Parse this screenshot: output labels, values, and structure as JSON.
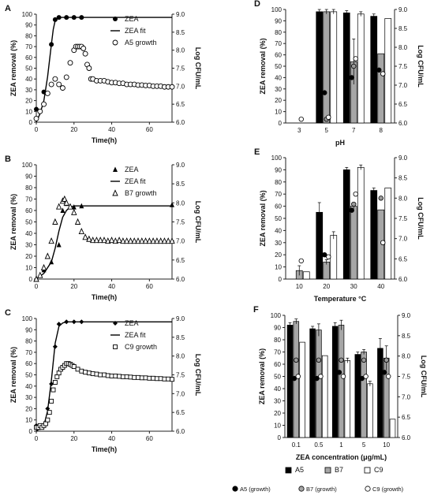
{
  "chart_data": [
    {
      "id": "A",
      "type": "line",
      "panel_label": "A",
      "xlabel": "Time(h)",
      "ylabel": "ZEA removal (%)",
      "y2label": "Log CFU/mL",
      "xlim": [
        0,
        72
      ],
      "ylim": [
        0,
        100
      ],
      "y2lim": [
        6.0,
        9.0
      ],
      "xticks": [
        0,
        20,
        40,
        60
      ],
      "yticks": [
        0,
        10,
        20,
        30,
        40,
        50,
        60,
        70,
        80,
        90,
        100
      ],
      "y2ticks": [
        6.0,
        6.5,
        7.0,
        7.5,
        8.0,
        8.5,
        9.0
      ],
      "legend": [
        {
          "label": "ZEA",
          "marker": "filled-circle"
        },
        {
          "label": "ZEA fit",
          "marker": "line"
        },
        {
          "label": "A5 growth",
          "marker": "open-circle"
        }
      ],
      "series": [
        {
          "name": "ZEA",
          "axis": "left",
          "style": "filled-circle",
          "x": [
            0,
            4,
            8,
            10,
            12,
            16,
            20,
            24
          ],
          "y": [
            12,
            28,
            72,
            95,
            97,
            97,
            97,
            97
          ]
        },
        {
          "name": "ZEA fit",
          "axis": "left",
          "style": "line",
          "x": [
            0,
            2,
            4,
            6,
            8,
            9,
            10,
            11,
            12,
            14,
            16,
            20,
            72
          ],
          "y": [
            0,
            8,
            20,
            42,
            72,
            86,
            94,
            96,
            97,
            97,
            97,
            97,
            97
          ]
        },
        {
          "name": "A5 growth",
          "axis": "right",
          "style": "open-circle",
          "x": [
            0,
            2,
            4,
            6,
            8,
            10,
            12,
            14,
            16,
            18,
            20,
            21,
            22,
            23,
            24,
            25,
            26,
            27,
            28,
            29,
            30,
            32,
            34,
            36,
            38,
            40,
            42,
            44,
            46,
            48,
            50,
            52,
            54,
            56,
            58,
            60,
            62,
            64,
            66,
            68,
            70,
            72
          ],
          "y": [
            6.1,
            6.3,
            6.5,
            6.8,
            7.05,
            7.2,
            7.05,
            6.95,
            7.25,
            7.65,
            8.0,
            8.1,
            8.1,
            8.1,
            8.1,
            8.05,
            7.9,
            7.6,
            7.5,
            7.2,
            7.2,
            7.15,
            7.15,
            7.15,
            7.12,
            7.1,
            7.1,
            7.08,
            7.08,
            7.05,
            7.05,
            7.05,
            7.03,
            7.03,
            7.02,
            7.02,
            7.0,
            7.0,
            7.0,
            6.98,
            6.98,
            6.98
          ]
        }
      ]
    },
    {
      "id": "B",
      "type": "line",
      "panel_label": "B",
      "xlabel": "Time(h)",
      "ylabel": "ZEA removal (%)",
      "y2label": "Log CFU/mL",
      "xlim": [
        0,
        72
      ],
      "ylim": [
        0,
        100
      ],
      "y2lim": [
        6.0,
        9.0
      ],
      "xticks": [
        0,
        20,
        40,
        60
      ],
      "yticks": [
        0,
        10,
        20,
        30,
        40,
        50,
        60,
        70,
        80,
        90,
        100
      ],
      "y2ticks": [
        6.0,
        6.5,
        7.0,
        7.5,
        8.0,
        8.5,
        9.0
      ],
      "legend": [
        {
          "label": "ZEA",
          "marker": "filled-triangle"
        },
        {
          "label": "ZEA fit",
          "marker": "line"
        },
        {
          "label": "B7 growth",
          "marker": "open-triangle"
        }
      ],
      "series": [
        {
          "name": "ZEA",
          "axis": "left",
          "style": "filled-triangle",
          "x": [
            0,
            4,
            8,
            12,
            14,
            16,
            20,
            24,
            72
          ],
          "y": [
            0,
            8,
            15,
            30,
            60,
            66,
            63,
            64,
            65
          ]
        },
        {
          "name": "ZEA fit",
          "axis": "left",
          "style": "line",
          "x": [
            0,
            4,
            8,
            10,
            12,
            14,
            16,
            18,
            20,
            22,
            24,
            72
          ],
          "y": [
            0,
            5,
            15,
            27,
            42,
            54,
            60,
            63,
            64,
            64,
            64,
            64
          ]
        },
        {
          "name": "B7 growth",
          "axis": "right",
          "style": "open-triangle",
          "x": [
            0,
            2,
            4,
            6,
            8,
            10,
            12,
            14,
            15,
            16,
            18,
            20,
            22,
            24,
            26,
            28,
            30,
            32,
            34,
            36,
            38,
            40,
            42,
            44,
            46,
            48,
            50,
            52,
            54,
            56,
            58,
            60,
            62,
            64,
            66,
            68,
            70,
            72
          ],
          "y": [
            6.0,
            6.1,
            6.3,
            6.6,
            7.0,
            7.5,
            7.9,
            8.05,
            8.1,
            8.0,
            7.9,
            7.75,
            7.5,
            7.25,
            7.1,
            7.05,
            7.02,
            7.02,
            7.02,
            7.02,
            7.0,
            7.02,
            7.0,
            7.02,
            7.0,
            7.0,
            7.0,
            7.0,
            7.0,
            7.0,
            7.0,
            7.0,
            7.0,
            7.0,
            7.0,
            7.0,
            7.0,
            7.0
          ]
        }
      ]
    },
    {
      "id": "C",
      "type": "line",
      "panel_label": "C",
      "xlabel": "Time(h)",
      "ylabel": "ZEA removal (%)",
      "y2label": "Log CFU/mL",
      "xlim": [
        0,
        72
      ],
      "ylim": [
        0,
        100
      ],
      "y2lim": [
        6.0,
        9.0
      ],
      "xticks": [
        0,
        20,
        40,
        60
      ],
      "yticks": [
        0,
        10,
        20,
        30,
        40,
        50,
        60,
        70,
        80,
        90,
        100
      ],
      "y2ticks": [
        6.0,
        6.5,
        7.0,
        7.5,
        8.0,
        8.5,
        9.0
      ],
      "legend": [
        {
          "label": "ZEA",
          "marker": "filled-diamond"
        },
        {
          "label": "ZEA fit",
          "marker": "line"
        },
        {
          "label": "C9 growth",
          "marker": "open-square"
        }
      ],
      "series": [
        {
          "name": "ZEA",
          "axis": "left",
          "style": "filled-diamond",
          "x": [
            0,
            2,
            4,
            6,
            8,
            10,
            12,
            16,
            20,
            24
          ],
          "y": [
            5,
            3,
            5,
            20,
            42,
            75,
            95,
            97,
            97,
            97
          ]
        },
        {
          "name": "ZEA fit",
          "axis": "left",
          "style": "line",
          "x": [
            0,
            4,
            6,
            8,
            10,
            12,
            14,
            16,
            20,
            72
          ],
          "y": [
            0,
            5,
            18,
            45,
            78,
            93,
            96,
            97,
            97,
            97
          ]
        },
        {
          "name": "C9 growth",
          "axis": "right",
          "style": "open-square",
          "x": [
            0,
            1,
            2,
            3,
            4,
            5,
            6,
            7,
            8,
            9,
            10,
            11,
            12,
            13,
            14,
            15,
            16,
            17,
            18,
            19,
            20,
            22,
            24,
            26,
            28,
            30,
            32,
            34,
            36,
            38,
            40,
            42,
            44,
            46,
            48,
            50,
            52,
            54,
            56,
            58,
            60,
            62,
            64,
            66,
            68,
            70,
            72
          ],
          "y": [
            6.1,
            6.1,
            6.15,
            6.1,
            6.15,
            6.2,
            6.3,
            6.5,
            6.8,
            7.1,
            7.3,
            7.45,
            7.55,
            7.65,
            7.7,
            7.75,
            7.8,
            7.8,
            7.78,
            7.75,
            7.72,
            7.65,
            7.6,
            7.57,
            7.55,
            7.53,
            7.52,
            7.5,
            7.5,
            7.48,
            7.47,
            7.47,
            7.46,
            7.45,
            7.45,
            7.44,
            7.43,
            7.43,
            7.42,
            7.42,
            7.41,
            7.41,
            7.4,
            7.4,
            7.39,
            7.39,
            7.38
          ]
        }
      ]
    },
    {
      "id": "D",
      "type": "bar",
      "panel_label": "D",
      "xlabel": "pH",
      "ylabel": "ZEA removal (%)",
      "y2label": "Log CFU/mL",
      "ylim": [
        0,
        100
      ],
      "y2lim": [
        6.0,
        9.0
      ],
      "yticks": [
        0,
        10,
        20,
        30,
        40,
        50,
        60,
        70,
        80,
        90,
        100
      ],
      "y2ticks": [
        6.0,
        6.5,
        7.0,
        7.5,
        8.0,
        8.5,
        9.0
      ],
      "categories": [
        "3",
        "5",
        "7",
        "8"
      ],
      "series": [
        {
          "name": "A5",
          "color": "#000000",
          "values": [
            0,
            98,
            97,
            94
          ],
          "errors": [
            0,
            2,
            2,
            2
          ]
        },
        {
          "name": "B7",
          "color": "#a6a6a6",
          "values": [
            0,
            98,
            54,
            61
          ],
          "errors": [
            0,
            2,
            20,
            0
          ]
        },
        {
          "name": "C9",
          "color": "#ffffff",
          "values": [
            0,
            98,
            96,
            92
          ],
          "errors": [
            0,
            2,
            2,
            0
          ]
        }
      ],
      "growth": [
        {
          "name": "A5 (growth)",
          "style": "black",
          "values": [
            null,
            6.8,
            7.2,
            7.4
          ]
        },
        {
          "name": "B7 (growth)",
          "style": "gray",
          "values": [
            null,
            6.1,
            7.5,
            null
          ]
        },
        {
          "name": "C9 (growth)",
          "style": "white",
          "values": [
            6.1,
            6.15,
            7.7,
            7.3
          ]
        }
      ]
    },
    {
      "id": "E",
      "type": "bar",
      "panel_label": "E",
      "xlabel": "Temperature °C",
      "ylabel": "ZEA removal (%)",
      "y2label": "Log CFU/mL",
      "ylim": [
        0,
        100
      ],
      "y2lim": [
        6.0,
        9.0
      ],
      "yticks": [
        0,
        10,
        20,
        30,
        40,
        50,
        60,
        70,
        80,
        90,
        100
      ],
      "y2ticks": [
        6.0,
        6.5,
        7.0,
        7.5,
        8.0,
        8.5,
        9.0
      ],
      "categories": [
        "10",
        "20",
        "30",
        "40"
      ],
      "series": [
        {
          "name": "A5",
          "color": "#000000",
          "values": [
            0,
            55,
            90,
            73
          ],
          "errors": [
            0,
            8,
            2,
            2
          ]
        },
        {
          "name": "B7",
          "color": "#a6a6a6",
          "values": [
            7,
            14,
            60,
            57
          ],
          "errors": [
            4,
            2,
            2,
            0
          ]
        },
        {
          "name": "C9",
          "color": "#ffffff",
          "values": [
            6,
            36,
            92,
            75
          ],
          "errors": [
            0,
            3,
            2,
            0
          ]
        }
      ],
      "growth": [
        {
          "name": "A5 (growth)",
          "style": "black",
          "values": [
            null,
            6.6,
            7.7,
            null
          ]
        },
        {
          "name": "B7 (growth)",
          "style": "gray",
          "values": [
            null,
            null,
            7.85,
            8.0
          ]
        },
        {
          "name": "C9 (growth)",
          "style": "white",
          "values": [
            6.45,
            6.55,
            8.1,
            6.9
          ]
        }
      ]
    },
    {
      "id": "F",
      "type": "bar",
      "panel_label": "F",
      "xlabel": "ZEA concentration (μg/mL)",
      "ylabel": "ZEA removal (%)",
      "y2label": "Log CFU/mL",
      "ylim": [
        0,
        100
      ],
      "y2lim": [
        6.0,
        9.0
      ],
      "yticks": [
        0,
        10,
        20,
        30,
        40,
        50,
        60,
        70,
        80,
        90,
        100
      ],
      "y2ticks": [
        6.0,
        6.5,
        7.0,
        7.5,
        8.0,
        8.5,
        9.0
      ],
      "categories": [
        "0.1",
        "0.5",
        "1",
        "5",
        "10"
      ],
      "series": [
        {
          "name": "A5",
          "color": "#000000",
          "values": [
            92,
            89,
            91,
            68,
            73
          ],
          "errors": [
            2,
            2,
            3,
            2,
            8
          ]
        },
        {
          "name": "B7",
          "color": "#a6a6a6",
          "values": [
            95,
            88,
            92,
            70,
            65
          ],
          "errors": [
            2,
            5,
            4,
            2,
            10
          ]
        },
        {
          "name": "C9",
          "color": "#ffffff",
          "values": [
            78,
            67,
            63,
            44,
            15
          ],
          "errors": [
            0,
            0,
            2,
            2,
            0
          ]
        }
      ],
      "growth": [
        {
          "name": "A5 (growth)",
          "style": "black",
          "values": [
            7.45,
            7.45,
            7.6,
            7.45,
            7.6
          ]
        },
        {
          "name": "B7 (growth)",
          "style": "gray",
          "values": [
            7.9,
            7.9,
            7.9,
            7.9,
            7.9
          ]
        },
        {
          "name": "C9 (growth)",
          "style": "white",
          "values": [
            7.5,
            7.5,
            7.5,
            7.5,
            7.5
          ]
        }
      ]
    }
  ],
  "legend_bars": [
    {
      "label": "A5",
      "color": "#000000"
    },
    {
      "label": "B7",
      "color": "#a6a6a6"
    },
    {
      "label": "C9",
      "color": "#ffffff"
    }
  ],
  "legend_growth": [
    {
      "label": "A5 (growth)",
      "color": "#000000"
    },
    {
      "label": "B7 (growth)",
      "color": "#a6a6a6"
    },
    {
      "label": "C9 (growth)",
      "color": "#ffffff"
    }
  ]
}
